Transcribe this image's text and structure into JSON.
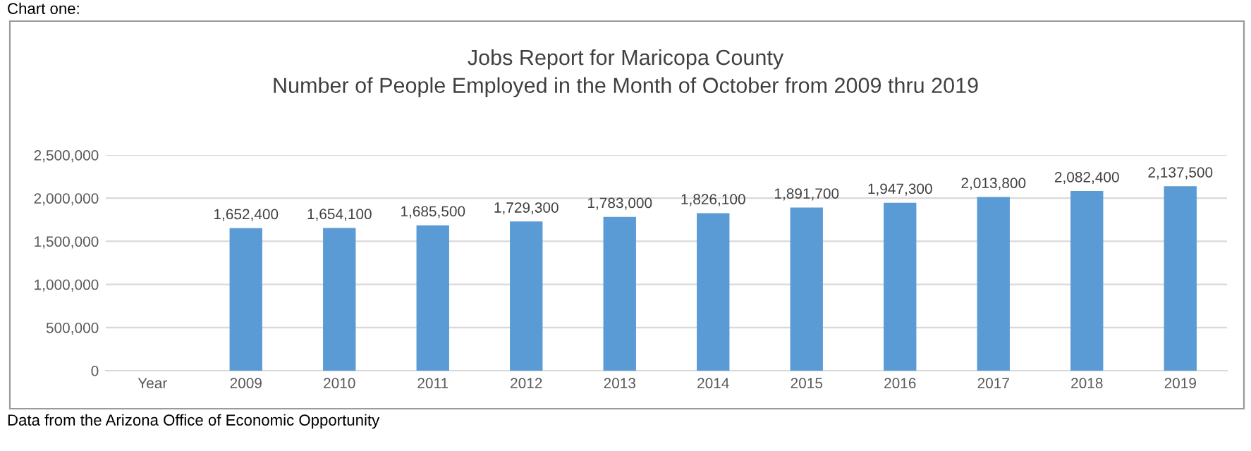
{
  "chart_data": {
    "type": "bar",
    "title": "Jobs Report for Maricopa County\nNumber of People Employed in the Month of October from 2009 thru 2019",
    "categories": [
      "Year",
      "2009",
      "2010",
      "2011",
      "2012",
      "2013",
      "2014",
      "2015",
      "2016",
      "2017",
      "2018",
      "2019"
    ],
    "values": [
      null,
      1652400,
      1654100,
      1685500,
      1729300,
      1783000,
      1826100,
      1891700,
      1947300,
      2013800,
      2082400,
      2137500
    ],
    "color": "#5b9bd5",
    "ylim": [
      0,
      2500000
    ],
    "yticks": [
      0,
      {
        "value": 500000,
        "label": "500,000"
      },
      {
        "value": 1000000,
        "label": "1,000,000"
      },
      {
        "value": 1500000,
        "label": "1,500,000"
      },
      {
        "value": 2000000,
        "label": "2,000,000"
      },
      {
        "value": 2500000,
        "label": "2,500,000"
      }
    ],
    "grid": "y",
    "value_labels": [
      null,
      "1,652,400",
      "1,654,100",
      "1,685,500",
      "1,729,300",
      "1,783,000",
      "1,826,100",
      "1,891,700",
      "1,947,300",
      "2,013,800",
      "2,082,400",
      "2,137,500"
    ],
    "legend": false,
    "annotations": [
      "Chart one:",
      "Data from the Arizona Office of Economic Opportunity"
    ]
  }
}
